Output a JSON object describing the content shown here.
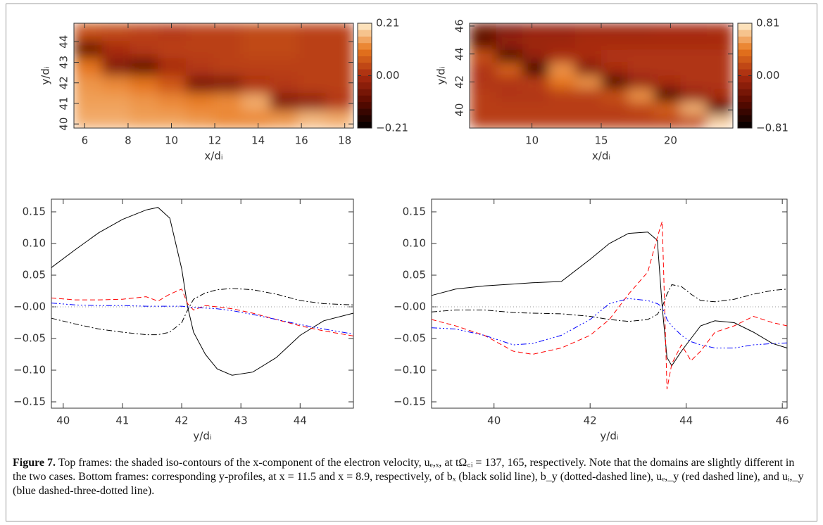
{
  "chart_data": [
    {
      "type": "heatmap",
      "xlabel": "x/dᵢ",
      "ylabel": "y/dᵢ",
      "xlim": [
        5.5,
        18.4
      ],
      "xticks": [
        6,
        8,
        10,
        12,
        14,
        16,
        18
      ],
      "ylim": [
        39.8,
        44.9
      ],
      "yticks": [
        40,
        41,
        42,
        43,
        44
      ],
      "zlim": [
        -0.21,
        0.21
      ],
      "cticks": [
        {
          "value": 0.21,
          "label": "0.21"
        },
        {
          "value": 0,
          "label": "0.00"
        },
        {
          "value": -0.21,
          "label": "−0.21"
        }
      ],
      "colormap": [
        "#000000",
        "#5a0a00",
        "#a82a10",
        "#e8781e",
        "#fff0d0"
      ],
      "z": [
        [
          0.05,
          0.04,
          0.03,
          0.02,
          0.03,
          0.03,
          0.04,
          0.04,
          0.03,
          0.03
        ],
        [
          -0.08,
          0.0,
          0.02,
          0.03,
          0.03,
          0.03,
          0.04,
          0.04,
          0.03,
          0.03
        ],
        [
          0.1,
          -0.05,
          -0.09,
          0.0,
          0.02,
          0.03,
          0.03,
          0.03,
          0.03,
          0.03
        ],
        [
          0.13,
          0.12,
          0.1,
          0.06,
          -0.06,
          -0.05,
          0.01,
          0.02,
          0.03,
          0.03
        ],
        [
          0.14,
          0.14,
          0.13,
          0.12,
          0.11,
          0.12,
          0.15,
          -0.05,
          -0.03,
          0.02
        ],
        [
          0.15,
          0.15,
          0.14,
          0.14,
          0.13,
          0.12,
          0.12,
          0.13,
          0.16,
          0.15
        ]
      ]
    },
    {
      "type": "heatmap",
      "xlabel": "x/dᵢ",
      "ylabel": "y/dᵢ",
      "xlim": [
        5.5,
        24.5
      ],
      "xticks": [
        10,
        15,
        20
      ],
      "ylim": [
        38.7,
        46.2
      ],
      "yticks": [
        40,
        42,
        44,
        46
      ],
      "zlim": [
        -0.81,
        0.81
      ],
      "cticks": [
        {
          "value": 0.81,
          "label": "0.81"
        },
        {
          "value": 0,
          "label": "0.00"
        },
        {
          "value": -0.81,
          "label": "−0.81"
        }
      ],
      "colormap": [
        "#000000",
        "#5a0a00",
        "#a82a10",
        "#e8781e",
        "#fff0d0"
      ],
      "z": [
        [
          -0.3,
          -0.2,
          -0.1,
          -0.1,
          -0.05,
          -0.05,
          -0.05,
          -0.02,
          -0.02,
          0.0
        ],
        [
          -0.4,
          -0.1,
          -0.05,
          -0.05,
          0.0,
          0.0,
          0.0,
          0.0,
          0.0,
          0.0
        ],
        [
          0.2,
          -0.5,
          -0.1,
          0.0,
          0.0,
          0.05,
          0.05,
          0.05,
          0.05,
          0.05
        ],
        [
          0.05,
          0.3,
          -0.6,
          0.5,
          -0.2,
          0.0,
          0.05,
          0.05,
          0.05,
          0.05
        ],
        [
          0.05,
          0.05,
          0.1,
          0.4,
          0.5,
          -0.5,
          -0.1,
          0.0,
          0.05,
          0.05
        ],
        [
          0.1,
          0.05,
          0.05,
          0.1,
          0.1,
          0.2,
          0.5,
          -0.5,
          -0.1,
          0.0
        ],
        [
          0.1,
          0.1,
          0.1,
          0.1,
          0.1,
          0.1,
          0.15,
          0.3,
          0.6,
          -0.4
        ],
        [
          0.1,
          0.1,
          0.1,
          0.1,
          0.1,
          0.1,
          0.1,
          0.1,
          0.15,
          0.7
        ]
      ]
    },
    {
      "type": "line",
      "xlabel": "y/dᵢ",
      "xlim": [
        39.8,
        44.9
      ],
      "xticks": [
        40,
        41,
        42,
        43,
        44
      ],
      "ylim": [
        -0.16,
        0.17
      ],
      "yticks": [
        {
          "value": -0.15,
          "label": "−0.15"
        },
        {
          "value": -0.1,
          "label": "−0.10"
        },
        {
          "value": -0.05,
          "label": "−0.05"
        },
        {
          "value": 0,
          "label": "−0.00"
        },
        0.05,
        {
          "value": 0.1,
          "label": "0.10"
        },
        0.15
      ],
      "reference_line": 0,
      "x": [
        39.8,
        40.2,
        40.6,
        41.0,
        41.4,
        41.6,
        41.8,
        42.0,
        42.1,
        42.2,
        42.4,
        42.6,
        42.85,
        43.2,
        43.6,
        44.0,
        44.4,
        44.9
      ],
      "series": [
        {
          "color": "#000000",
          "dash": "solid",
          "values": [
            0.062,
            0.09,
            0.117,
            0.138,
            0.153,
            0.157,
            0.14,
            0.06,
            0.0,
            -0.04,
            -0.075,
            -0.098,
            -0.108,
            -0.103,
            -0.08,
            -0.045,
            -0.022,
            -0.01
          ]
        },
        {
          "color": "#000000",
          "dash": "dashdot",
          "values": [
            -0.018,
            -0.027,
            -0.035,
            -0.04,
            -0.044,
            -0.044,
            -0.04,
            -0.025,
            -0.005,
            0.012,
            0.022,
            0.027,
            0.029,
            0.027,
            0.02,
            0.01,
            0.005,
            0.003
          ]
        },
        {
          "color": "#ff0000",
          "dash": "dashed",
          "values": [
            0.014,
            0.011,
            0.011,
            0.012,
            0.016,
            0.009,
            0.02,
            0.028,
            0.005,
            -0.005,
            0.002,
            0.0,
            -0.003,
            -0.01,
            -0.02,
            -0.03,
            -0.038,
            -0.046
          ]
        },
        {
          "color": "#0000ff",
          "dash": "dashdotdotdot",
          "values": [
            0.006,
            0.003,
            0.002,
            0.002,
            0.001,
            0.001,
            0.001,
            0.001,
            0.0,
            -0.001,
            -0.002,
            -0.003,
            -0.006,
            -0.012,
            -0.02,
            -0.028,
            -0.035,
            -0.043
          ]
        }
      ]
    },
    {
      "type": "line",
      "xlabel": "y/dᵢ",
      "xlim": [
        38.7,
        46.1
      ],
      "xticks": [
        40,
        42,
        44,
        46
      ],
      "ylim": [
        -0.16,
        0.17
      ],
      "yticks": [
        {
          "value": -0.15,
          "label": "−0.15"
        },
        {
          "value": -0.1,
          "label": "−0.10"
        },
        {
          "value": -0.05,
          "label": "−0.05"
        },
        {
          "value": 0,
          "label": "−0.00"
        },
        0.05,
        {
          "value": 0.1,
          "label": "0.10"
        },
        0.15
      ],
      "reference_line": 0,
      "x": [
        38.7,
        39.2,
        39.8,
        40.4,
        40.8,
        41.4,
        42.0,
        42.4,
        42.8,
        43.2,
        43.4,
        43.5,
        43.6,
        43.7,
        43.9,
        44.1,
        44.3,
        44.6,
        45.0,
        45.4,
        45.8,
        46.1
      ],
      "series": [
        {
          "color": "#000000",
          "dash": "solid",
          "values": [
            0.018,
            0.028,
            0.033,
            0.036,
            0.038,
            0.04,
            0.075,
            0.1,
            0.116,
            0.118,
            0.105,
            0.0,
            -0.08,
            -0.093,
            -0.07,
            -0.05,
            -0.03,
            -0.022,
            -0.025,
            -0.04,
            -0.058,
            -0.065
          ]
        },
        {
          "color": "#000000",
          "dash": "dashdot",
          "values": [
            -0.008,
            -0.005,
            -0.005,
            -0.009,
            -0.01,
            -0.011,
            -0.015,
            -0.02,
            -0.023,
            -0.02,
            -0.012,
            0.0,
            0.02,
            0.035,
            0.032,
            0.02,
            0.01,
            0.008,
            0.012,
            0.02,
            0.026,
            0.028
          ]
        },
        {
          "color": "#ff0000",
          "dash": "dashed",
          "values": [
            -0.02,
            -0.03,
            -0.045,
            -0.07,
            -0.075,
            -0.065,
            -0.045,
            -0.02,
            0.02,
            0.055,
            0.11,
            0.135,
            -0.13,
            -0.09,
            -0.06,
            -0.085,
            -0.07,
            -0.04,
            -0.03,
            -0.015,
            -0.025,
            -0.03
          ]
        },
        {
          "color": "#0000ff",
          "dash": "dashdotdotdot",
          "values": [
            -0.033,
            -0.035,
            -0.045,
            -0.06,
            -0.058,
            -0.045,
            -0.02,
            0.005,
            0.013,
            0.01,
            0.005,
            0.0,
            -0.02,
            -0.03,
            -0.045,
            -0.055,
            -0.06,
            -0.065,
            -0.065,
            -0.06,
            -0.058,
            -0.057
          ]
        }
      ]
    }
  ],
  "caption": {
    "label": "Figure 7.",
    "text": "Top frames: the shaded iso-contours of the x-component of the electron velocity, uₑ,ₓ, at tΩ꜀ᵢ = 137, 165, respectively. Note that the domains are slightly different in the two cases. Bottom frames: corresponding y-profiles, at x = 11.5 and x = 8.9, respectively, of bₓ (black solid line), b_y (dotted-dashed line), uₑ,_y (red dashed line), and uᵢ,_y (blue dashed-three-dotted line)."
  }
}
